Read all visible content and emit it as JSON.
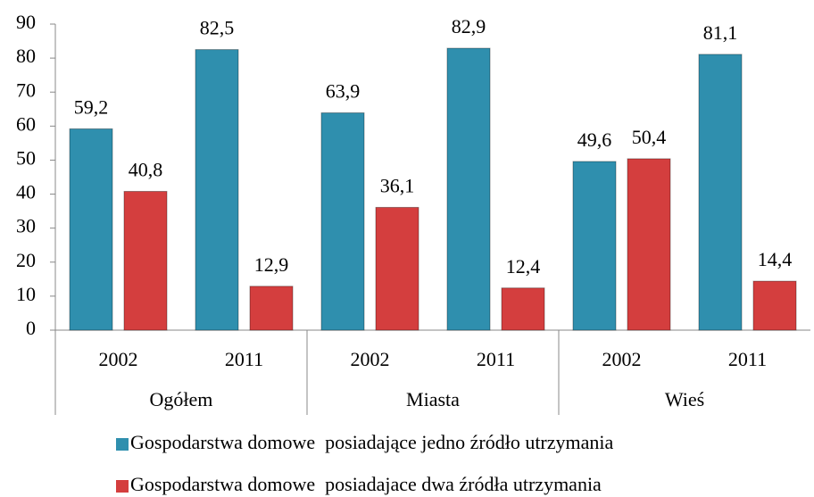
{
  "chart_data": {
    "type": "bar",
    "categories": [
      "2002",
      "2011",
      "2002",
      "2011",
      "2002",
      "2011"
    ],
    "groups": [
      "Ogółem",
      "Miasta",
      "Wieś"
    ],
    "series": [
      {
        "name": "Gospodarstwa domowe  posiadające jedno źródło utrzymania",
        "color": "#2f8fae",
        "values": [
          59.2,
          82.5,
          63.9,
          82.9,
          49.6,
          81.1
        ],
        "value_labels": [
          "59,2",
          "82,5",
          "63,9",
          "82,9",
          "49,6",
          "81,1"
        ]
      },
      {
        "name": "Gospodarstwa domowe  posiadajace dwa źródła utrzymania",
        "color": "#d43e3e",
        "values": [
          40.8,
          12.9,
          36.1,
          12.4,
          50.4,
          14.4
        ],
        "value_labels": [
          "40,8",
          "12,9",
          "36,1",
          "12,4",
          "50,4",
          "14,4"
        ]
      }
    ],
    "ylim": [
      0,
      90
    ],
    "yticks": [
      0,
      10,
      20,
      30,
      40,
      50,
      60,
      70,
      80,
      90
    ]
  }
}
